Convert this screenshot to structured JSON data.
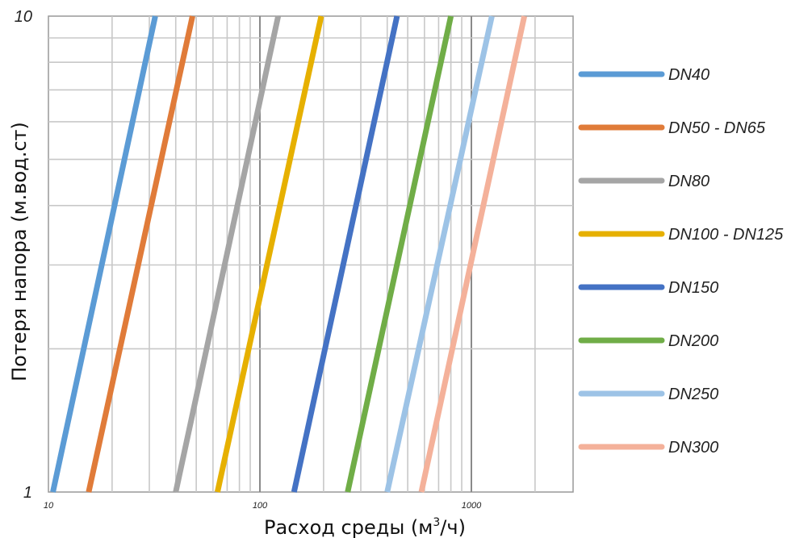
{
  "chart_data": {
    "type": "line",
    "xscale": "log",
    "yscale": "log",
    "xlim": [
      10,
      3000
    ],
    "ylim": [
      1,
      10
    ],
    "grid": true,
    "legend_position": "right",
    "xlabel_prefix": "Расход среды (м",
    "xlabel_sup": "3",
    "xlabel_suffix": "/ч)",
    "ylabel": "Потеря напора (м.вод.ст)",
    "x_ticks": [
      "10",
      "100",
      "1000"
    ],
    "y_ticks": [
      "1",
      "10"
    ],
    "series": [
      {
        "name": "DN40",
        "color": "#5b9bd5",
        "x": [
          10.5,
          32
        ]
      },
      {
        "name": "DN50 - DN65",
        "color": "#e07b39",
        "x": [
          15.5,
          48
        ]
      },
      {
        "name": "DN80",
        "color": "#a5a5a5",
        "x": [
          40,
          122
        ]
      },
      {
        "name": "DN100 - DN125",
        "color": "#e6b000",
        "x": [
          63,
          195
        ]
      },
      {
        "name": "DN150",
        "color": "#4472c4",
        "x": [
          145,
          445
        ]
      },
      {
        "name": "DN200",
        "color": "#70ad47",
        "x": [
          260,
          800
        ]
      },
      {
        "name": "DN250",
        "color": "#9dc3e6",
        "x": [
          400,
          1250
        ]
      },
      {
        "name": "DN300",
        "color": "#f4b19a",
        "x": [
          580,
          1780
        ]
      }
    ],
    "y": [
      1,
      10
    ]
  }
}
